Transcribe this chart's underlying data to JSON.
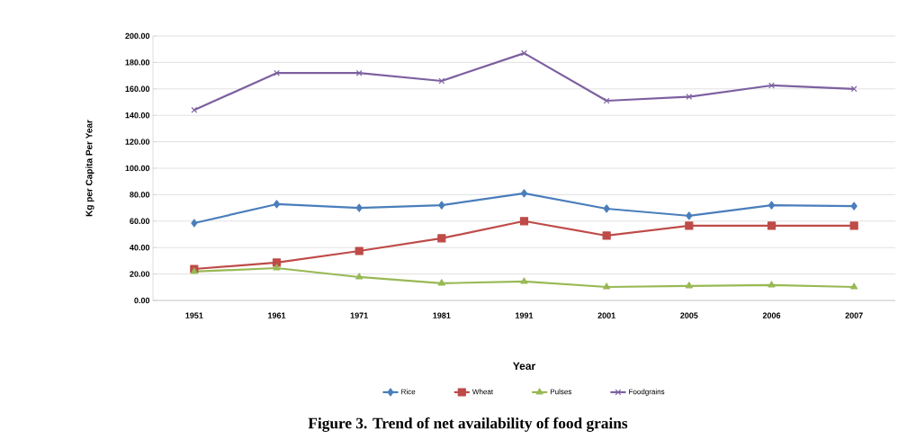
{
  "chart_data": {
    "type": "line",
    "title": "Figure 3. Trend of net availability of food grains",
    "xlabel": "Year",
    "ylabel": "Kg per Capita Per Year",
    "categories": [
      "1951",
      "1961",
      "1971",
      "1981",
      "1991",
      "2001",
      "2005",
      "2006",
      "2007"
    ],
    "series": [
      {
        "name": "Rice",
        "color": "#4a7ebb",
        "marker": "diamond",
        "values": [
          58.5,
          72.8,
          70,
          72,
          81,
          69.4,
          64,
          72,
          71.4
        ]
      },
      {
        "name": "Wheat",
        "color": "#be4b48",
        "marker": "square",
        "values": [
          23.8,
          28.6,
          37.4,
          47,
          60,
          49,
          56.5,
          56.5,
          56.5
        ]
      },
      {
        "name": "Pulses",
        "color": "#98b954",
        "marker": "triangle",
        "values": [
          21.8,
          24.5,
          17.7,
          13,
          14.3,
          10.2,
          11,
          11.6,
          10.2
        ]
      },
      {
        "name": "Foodgrains",
        "color": "#7d60a0",
        "marker": "cross",
        "values": [
          144,
          172,
          172,
          166,
          187,
          151,
          154,
          162.6,
          160
        ]
      }
    ],
    "ylim": [
      0,
      200
    ],
    "yticks": [
      {
        "value": 0,
        "label": "0.00"
      },
      {
        "value": 20,
        "label": "20.00"
      },
      {
        "value": 40,
        "label": "40.00"
      },
      {
        "value": 60,
        "label": "60.00"
      },
      {
        "value": 80,
        "label": "80.00"
      },
      {
        "value": 100,
        "label": "100.00"
      },
      {
        "value": 120,
        "label": "120.00"
      },
      {
        "value": 140,
        "label": "140.00"
      },
      {
        "value": 160,
        "label": "160.00"
      },
      {
        "value": 180,
        "label": "180.00"
      },
      {
        "value": 200,
        "label": "200.00"
      }
    ],
    "grid": "y",
    "legend": "bottom",
    "line_style": "solid"
  }
}
